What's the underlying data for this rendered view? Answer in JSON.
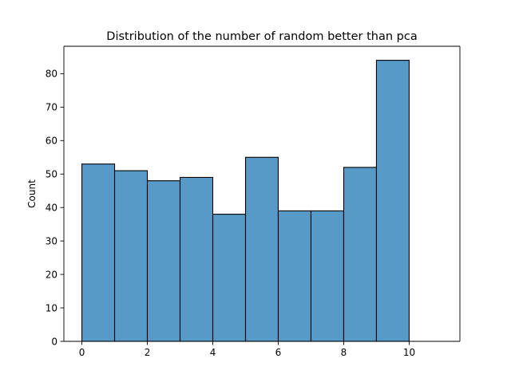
{
  "chart_data": {
    "type": "bar",
    "title": "Distribution of the number of random better than pca",
    "xlabel": "",
    "ylabel": "Count",
    "bins": [
      {
        "x0": 0,
        "x1": 1,
        "count": 53
      },
      {
        "x0": 1,
        "x1": 2,
        "count": 51
      },
      {
        "x0": 2,
        "x1": 3,
        "count": 48
      },
      {
        "x0": 3,
        "x1": 4,
        "count": 49
      },
      {
        "x0": 4,
        "x1": 5,
        "count": 38
      },
      {
        "x0": 5,
        "x1": 6,
        "count": 55
      },
      {
        "x0": 6,
        "x1": 7,
        "count": 39
      },
      {
        "x0": 7,
        "x1": 8,
        "count": 39
      },
      {
        "x0": 8,
        "x1": 9,
        "count": 52
      },
      {
        "x0": 9,
        "x1": 10,
        "count": 84
      }
    ],
    "xlim": [
      -0.55,
      11.55
    ],
    "ylim": [
      0,
      88.2
    ],
    "xticks": [
      0,
      2,
      4,
      6,
      8,
      10
    ],
    "yticks": [
      0,
      10,
      20,
      30,
      40,
      50,
      60,
      70,
      80
    ],
    "grid": false,
    "legend": "none",
    "colors": {
      "bar_fill": "#5799c7",
      "bar_edge": "#000000"
    }
  }
}
